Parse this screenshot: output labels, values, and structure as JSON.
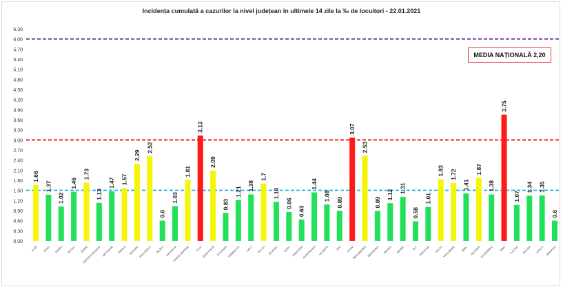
{
  "chart_data": {
    "type": "bar",
    "title": "Incidența cumulată a cazurilor la nivel județean în ultimele 14 zile la ‰ de locuitori - 22.01.2021",
    "xlabel": "",
    "ylabel": "",
    "ylim": [
      0,
      6.3
    ],
    "yticks": [
      "0.00",
      "0.30",
      "0.60",
      "0.90",
      "1.20",
      "1.50",
      "1.80",
      "2.10",
      "2.40",
      "2.70",
      "3.00",
      "3.30",
      "3.60",
      "3.90",
      "4.20",
      "4.50",
      "4.80",
      "5.10",
      "5.40",
      "5.70",
      "6.00",
      "6.30"
    ],
    "grid": false,
    "categories": [
      "ALBA",
      "ARAD",
      "ARGES",
      "BACAU",
      "BIHOR",
      "BISTRITA NASAUD",
      "BOTOSANI",
      "BRAILA",
      "BRASOV",
      "BUCURESTI",
      "BUZAU",
      "CALARASI",
      "CARAS SEVERIN",
      "CLUJ",
      "CONSTANTA",
      "COVASNA",
      "DAMBOVITA",
      "DOLJ",
      "GALATI",
      "GIURGIU",
      "GORJ",
      "HARGHITA",
      "HUNEDOARA",
      "IALOMITA",
      "IASI",
      "ILFOV",
      "MARAMURES",
      "MEHEDINTI",
      "MURES",
      "NEAMT",
      "OLT",
      "PRAHOVA",
      "SALAJ",
      "SATU MARE",
      "SIBIU",
      "SUCEAVA",
      "TELEORMAN",
      "TIMIS",
      "TULCEA",
      "VALCEA",
      "VASLUI",
      "VRANCEA"
    ],
    "values": [
      1.66,
      1.37,
      1.02,
      1.46,
      1.73,
      1.13,
      1.47,
      1.57,
      2.29,
      2.52,
      0.6,
      1.03,
      1.81,
      3.13,
      2.09,
      0.83,
      1.21,
      1.38,
      1.7,
      1.16,
      0.86,
      0.63,
      1.44,
      1.08,
      0.89,
      3.07,
      2.53,
      0.89,
      1.12,
      1.31,
      0.58,
      1.01,
      1.83,
      1.72,
      1.41,
      1.87,
      1.38,
      3.75,
      1.07,
      1.34,
      1.35,
      0.6
    ],
    "value_labels": [
      "1.66",
      "1.37",
      "1.02",
      "1.46",
      "1.73",
      "1.13",
      "1.47",
      "1.57",
      "2.29",
      "2.52",
      "0.6",
      "1.03",
      "1.81",
      "3.13",
      "2.09",
      "0.83",
      "1.21",
      "1.38",
      "1.7",
      "1.16",
      "0.86",
      "0.63",
      "1.44",
      "1.08",
      "0.89",
      "3.07",
      "2.53",
      "0.89",
      "1.12",
      "1.31",
      "0.58",
      "1.01",
      "1.83",
      "1.72",
      "1.41",
      "1.87",
      "1.38",
      "3.75",
      "1.07",
      "1.34",
      "1.35",
      "0.6"
    ],
    "color_thresholds": {
      "low_max": 1.5,
      "mid_max": 3.0
    },
    "colors": {
      "low": "#22e05a",
      "mid": "#f5f50a",
      "high": "#ff1a1a"
    },
    "reference_lines": [
      {
        "value": 1.5,
        "color": "#2bb5e0",
        "style": "dashed"
      },
      {
        "value": 3.0,
        "color": "#ff1a1a",
        "style": "dashed"
      },
      {
        "value": 6.0,
        "color": "#6a2fb5",
        "style": "dashed"
      }
    ],
    "annotation": "MEDIA NAȚIONALĂ 2,20"
  }
}
